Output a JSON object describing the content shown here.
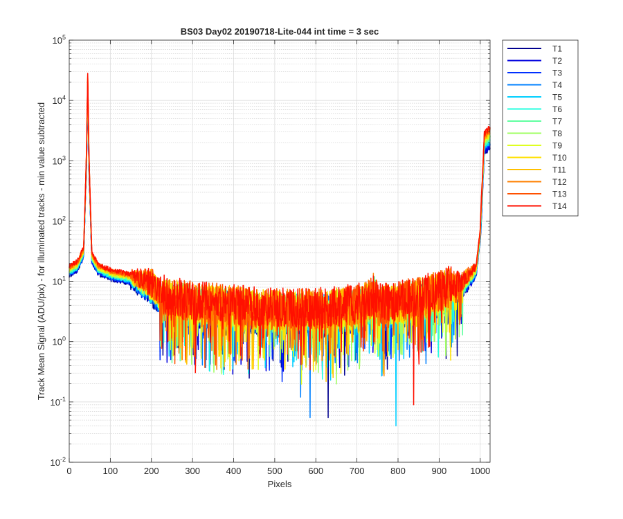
{
  "chart_data": {
    "type": "line",
    "title": "BS03 Day02 20190718-Lite-044 int time = 3 sec",
    "xlabel": "Pixels",
    "ylabel": "Track Mean Signal (ADU/pix) - for illuminated tracks - min value subtracted",
    "xlim": [
      0,
      1024
    ],
    "ylim": [
      0.01,
      100000
    ],
    "yscale": "log",
    "grid": true,
    "minor_grid": true,
    "legend_position": "outside-top-right",
    "x_ticks": [
      "0",
      "100",
      "200",
      "300",
      "400",
      "500",
      "600",
      "700",
      "800",
      "900",
      "1000"
    ],
    "x_tick_values": [
      0,
      100,
      200,
      300,
      400,
      500,
      600,
      700,
      800,
      900,
      1000
    ],
    "y_ticks": [
      {
        "exp": -2,
        "base": "10",
        "sup": "-2"
      },
      {
        "exp": -1,
        "base": "10",
        "sup": "-1"
      },
      {
        "exp": 0,
        "base": "10",
        "sup": "0"
      },
      {
        "exp": 1,
        "base": "10",
        "sup": "1"
      },
      {
        "exp": 2,
        "base": "10",
        "sup": "2"
      },
      {
        "exp": 3,
        "base": "10",
        "sup": "3"
      },
      {
        "exp": 4,
        "base": "10",
        "sup": "4"
      },
      {
        "exp": 5,
        "base": "10",
        "sup": "5"
      }
    ],
    "profile": {
      "x": [
        0,
        20,
        35,
        42,
        45,
        48,
        55,
        70,
        100,
        150,
        200,
        230,
        300,
        400,
        500,
        600,
        700,
        735,
        742,
        750,
        800,
        900,
        950,
        990,
        1000,
        1010,
        1024
      ],
      "y": [
        15,
        18,
        30,
        1000,
        20000,
        1000,
        25,
        16,
        13,
        11,
        8,
        5,
        4,
        3.5,
        3,
        3,
        3.5,
        4.5,
        6,
        3.5,
        4,
        6,
        8,
        15,
        60,
        2000,
        2500
      ]
    },
    "deep_dips": [
      {
        "x": 375,
        "y": 0.3,
        "series": "T4"
      },
      {
        "x": 563,
        "y": 0.12,
        "series": "T4"
      },
      {
        "x": 586,
        "y": 0.055,
        "series": "T4"
      },
      {
        "x": 630,
        "y": 0.055,
        "series": "T1"
      },
      {
        "x": 795,
        "y": 0.04,
        "series": "T5"
      },
      {
        "x": 838,
        "y": 0.09,
        "series": "T14"
      },
      {
        "x": 240,
        "y": 1.0,
        "series": "T14"
      },
      {
        "x": 760,
        "y": 0.27,
        "series": "T5"
      },
      {
        "x": 525,
        "y": 0.35,
        "series": "T10"
      }
    ],
    "series": [
      {
        "name": "T1",
        "color": "#00008f"
      },
      {
        "name": "T2",
        "color": "#0000df"
      },
      {
        "name": "T3",
        "color": "#0030ff"
      },
      {
        "name": "T4",
        "color": "#0080ff"
      },
      {
        "name": "T5",
        "color": "#00cfff"
      },
      {
        "name": "T6",
        "color": "#20ffdf"
      },
      {
        "name": "T7",
        "color": "#60ffa0"
      },
      {
        "name": "T8",
        "color": "#9fff60"
      },
      {
        "name": "T9",
        "color": "#dfff20"
      },
      {
        "name": "T10",
        "color": "#ffe000"
      },
      {
        "name": "T11",
        "color": "#ffc000"
      },
      {
        "name": "T12",
        "color": "#ff8000"
      },
      {
        "name": "T13",
        "color": "#ff5000"
      },
      {
        "name": "T14",
        "color": "#ff1000"
      }
    ]
  }
}
